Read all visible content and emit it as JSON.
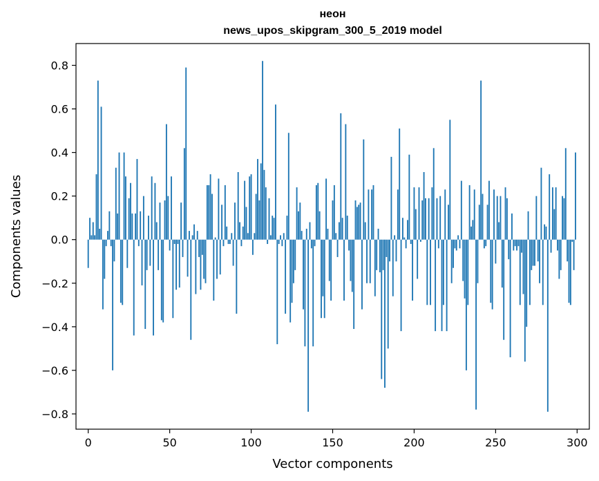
{
  "chart_data": {
    "type": "bar",
    "title": "неон",
    "subtitle": "news_upos_skipgram_300_5_2019 model",
    "xlabel": "Vector components",
    "ylabel": "Components values",
    "xlim": [
      -7.5,
      307.5
    ],
    "ylim": [
      -0.87,
      0.9
    ],
    "xticks": [
      0,
      50,
      100,
      150,
      200,
      250,
      300
    ],
    "yticks": [
      -0.8,
      -0.6,
      -0.4,
      -0.2,
      0.0,
      0.2,
      0.4,
      0.6,
      0.8
    ],
    "ytick_labels": [
      "−0.8",
      "−0.6",
      "−0.4",
      "−0.2",
      "0.0",
      "0.2",
      "0.4",
      "0.6",
      "0.8"
    ],
    "bar_color": "#1f77b4",
    "values": [
      -0.13,
      0.1,
      0.02,
      0.08,
      0.02,
      0.3,
      0.73,
      0.05,
      0.61,
      -0.32,
      -0.18,
      -0.03,
      0.04,
      0.13,
      -0.03,
      -0.6,
      -0.1,
      0.33,
      0.12,
      0.4,
      -0.29,
      -0.3,
      0.4,
      0.29,
      -0.13,
      0.19,
      0.26,
      0.12,
      -0.44,
      0.12,
      0.37,
      -0.03,
      0.13,
      -0.21,
      0.2,
      -0.41,
      -0.14,
      0.11,
      -0.12,
      0.29,
      -0.44,
      0.26,
      0.08,
      -0.14,
      0.17,
      -0.37,
      -0.38,
      0.18,
      0.53,
      0.2,
      -0.05,
      0.29,
      -0.36,
      -0.02,
      -0.23,
      -0.02,
      -0.22,
      0.17,
      -0.08,
      0.42,
      0.79,
      -0.17,
      0.04,
      -0.46,
      0.02,
      0.07,
      -0.25,
      0.04,
      -0.08,
      -0.23,
      -0.07,
      -0.18,
      -0.2,
      0.25,
      0.25,
      0.3,
      0.21,
      -0.28,
      0.01,
      -0.18,
      0.28,
      -0.16,
      0.16,
      -0.03,
      0.25,
      0.06,
      -0.02,
      -0.02,
      0.03,
      -0.12,
      0.17,
      -0.34,
      0.31,
      0.08,
      -0.03,
      0.06,
      0.27,
      0.15,
      0.03,
      0.29,
      0.3,
      -0.07,
      0.03,
      0.21,
      0.37,
      0.18,
      0.35,
      0.82,
      0.32,
      0.24,
      -0.02,
      0.19,
      0.02,
      0.11,
      0.1,
      0.62,
      -0.48,
      -0.02,
      0.02,
      -0.03,
      0.03,
      -0.34,
      0.11,
      0.49,
      -0.38,
      -0.29,
      -0.2,
      -0.14,
      0.24,
      0.13,
      0.17,
      0.04,
      -0.32,
      -0.49,
      0.05,
      -0.79,
      0.08,
      -0.04,
      -0.49,
      -0.03,
      0.25,
      0.26,
      0.13,
      -0.36,
      -0.26,
      -0.36,
      0.28,
      0.05,
      -0.19,
      -0.28,
      0.18,
      0.25,
      0.03,
      -0.08,
      0.08,
      0.58,
      0.1,
      -0.28,
      0.53,
      0.11,
      -0.05,
      -0.19,
      -0.24,
      -0.41,
      0.18,
      0.15,
      0.16,
      0.17,
      -0.32,
      0.46,
      0.08,
      -0.2,
      0.23,
      -0.2,
      0.23,
      0.25,
      -0.26,
      -0.14,
      0.05,
      -0.15,
      -0.64,
      -0.14,
      -0.68,
      -0.08,
      -0.5,
      -0.1,
      0.38,
      -0.26,
      0.02,
      -0.1,
      0.23,
      0.51,
      -0.42,
      0.1,
      0.01,
      -0.04,
      0.09,
      0.39,
      -0.02,
      -0.28,
      0.24,
      0.14,
      -0.18,
      0.24,
      -0.01,
      0.18,
      0.31,
      0.19,
      -0.3,
      0.19,
      -0.3,
      0.24,
      0.42,
      -0.42,
      0.19,
      -0.04,
      0.2,
      -0.42,
      -0.3,
      0.23,
      -0.42,
      0.16,
      0.55,
      -0.2,
      -0.13,
      -0.04,
      -0.05,
      0.02,
      -0.04,
      0.27,
      -0.19,
      -0.27,
      -0.6,
      -0.3,
      0.25,
      0.06,
      0.09,
      0.23,
      -0.78,
      -0.2,
      0.16,
      0.73,
      0.21,
      -0.04,
      -0.03,
      0.16,
      0.27,
      -0.29,
      -0.32,
      0.23,
      -0.11,
      0.2,
      0.08,
      0.2,
      -0.22,
      -0.46,
      0.24,
      0.19,
      -0.09,
      -0.54,
      0.12,
      -0.05,
      -0.03,
      -0.05,
      -0.03,
      -0.3,
      -0.06,
      -0.25,
      -0.56,
      -0.4,
      0.13,
      -0.3,
      -0.14,
      -0.12,
      -0.12,
      0.2,
      -0.1,
      -0.2,
      0.33,
      -0.3,
      0.07,
      0.06,
      -0.79,
      0.3,
      -0.06,
      0.24,
      0.14,
      0.24,
      -0.05,
      -0.18,
      -0.14,
      0.2,
      0.19,
      0.42,
      -0.1,
      -0.29,
      -0.3,
      -0.01,
      -0.14,
      0.4
    ]
  }
}
